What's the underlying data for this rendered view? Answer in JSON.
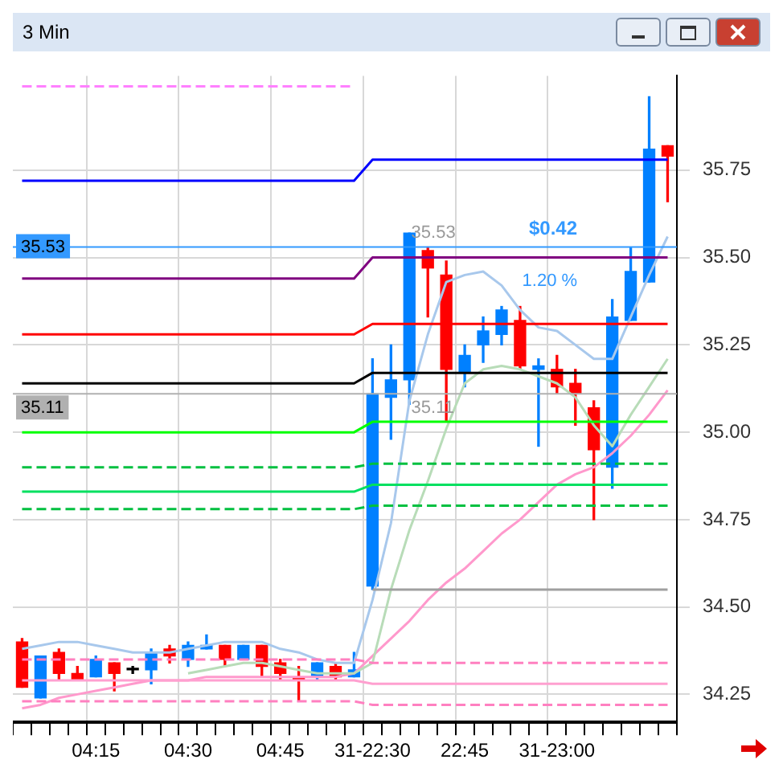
{
  "chart_data": {
    "type": "candlestick",
    "title": "3 Min",
    "categories": [
      null,
      null,
      null,
      null,
      "04:15",
      null,
      null,
      null,
      null,
      "04:30",
      null,
      null,
      null,
      null,
      "04:45",
      null,
      null,
      null,
      null,
      "31-22:30",
      null,
      null,
      null,
      null,
      "22:45",
      null,
      null,
      null,
      null,
      "31-23:00",
      null,
      null,
      null,
      null,
      null,
      null
    ],
    "series": [
      {
        "type": "line",
        "color": "#ff80ff",
        "line_style": "dashed",
        "values": [
          35.99,
          35.99,
          35.99,
          35.99,
          35.99,
          35.99,
          35.99,
          35.99,
          35.99,
          35.99,
          35.99,
          35.99,
          35.99,
          35.99,
          35.99,
          35.99,
          35.99,
          35.99,
          35.99,
          null,
          null,
          null,
          null,
          null,
          null,
          null,
          null,
          null,
          null,
          null,
          null,
          null,
          null,
          null,
          null,
          null
        ]
      },
      {
        "type": "line",
        "color": "#0000ff",
        "values": [
          35.72,
          35.72,
          35.72,
          35.72,
          35.72,
          35.72,
          35.72,
          35.72,
          35.72,
          35.72,
          35.72,
          35.72,
          35.72,
          35.72,
          35.72,
          35.72,
          35.72,
          35.72,
          35.72,
          35.78,
          35.78,
          35.78,
          35.78,
          35.78,
          35.78,
          35.78,
          35.78,
          35.78,
          35.78,
          35.78,
          35.78,
          35.78,
          35.78,
          35.78,
          35.78,
          35.78
        ]
      },
      {
        "type": "line",
        "color": "#800080",
        "values": [
          35.44,
          35.44,
          35.44,
          35.44,
          35.44,
          35.44,
          35.44,
          35.44,
          35.44,
          35.44,
          35.44,
          35.44,
          35.44,
          35.44,
          35.44,
          35.44,
          35.44,
          35.44,
          35.44,
          35.5,
          35.5,
          35.5,
          35.5,
          35.5,
          35.5,
          35.5,
          35.5,
          35.5,
          35.5,
          35.5,
          35.5,
          35.5,
          35.5,
          35.5,
          35.5,
          35.5
        ]
      },
      {
        "type": "line",
        "color": "#ff0000",
        "values": [
          35.28,
          35.28,
          35.28,
          35.28,
          35.28,
          35.28,
          35.28,
          35.28,
          35.28,
          35.28,
          35.28,
          35.28,
          35.28,
          35.28,
          35.28,
          35.28,
          35.28,
          35.28,
          35.28,
          35.31,
          35.31,
          35.31,
          35.31,
          35.31,
          35.31,
          35.31,
          35.31,
          35.31,
          35.31,
          35.31,
          35.31,
          35.31,
          35.31,
          35.31,
          35.31,
          35.31
        ]
      },
      {
        "type": "line",
        "color": "#000000",
        "values": [
          35.14,
          35.14,
          35.14,
          35.14,
          35.14,
          35.14,
          35.14,
          35.14,
          35.14,
          35.14,
          35.14,
          35.14,
          35.14,
          35.14,
          35.14,
          35.14,
          35.14,
          35.14,
          35.14,
          35.17,
          35.17,
          35.17,
          35.17,
          35.17,
          35.17,
          35.17,
          35.17,
          35.17,
          35.17,
          35.17,
          35.17,
          35.17,
          35.17,
          35.17,
          35.17,
          35.17
        ]
      },
      {
        "type": "line",
        "color": "#00ff00",
        "values": [
          35.0,
          35.0,
          35.0,
          35.0,
          35.0,
          35.0,
          35.0,
          35.0,
          35.0,
          35.0,
          35.0,
          35.0,
          35.0,
          35.0,
          35.0,
          35.0,
          35.0,
          35.0,
          35.0,
          35.03,
          35.03,
          35.03,
          35.03,
          35.03,
          35.03,
          35.03,
          35.03,
          35.03,
          35.03,
          35.03,
          35.03,
          35.03,
          35.03,
          35.03,
          35.03,
          35.03
        ]
      },
      {
        "type": "line",
        "color": "#00c040",
        "line_style": "dashed",
        "values": [
          34.9,
          34.9,
          34.9,
          34.9,
          34.9,
          34.9,
          34.9,
          34.9,
          34.9,
          34.9,
          34.9,
          34.9,
          34.9,
          34.9,
          34.9,
          34.9,
          34.9,
          34.9,
          34.9,
          34.91,
          34.91,
          34.91,
          34.91,
          34.91,
          34.91,
          34.91,
          34.91,
          34.91,
          34.91,
          34.91,
          34.91,
          34.91,
          34.91,
          34.91,
          34.91,
          34.91
        ]
      },
      {
        "type": "line",
        "color": "#00e060",
        "values": [
          34.83,
          34.83,
          34.83,
          34.83,
          34.83,
          34.83,
          34.83,
          34.83,
          34.83,
          34.83,
          34.83,
          34.83,
          34.83,
          34.83,
          34.83,
          34.83,
          34.83,
          34.83,
          34.83,
          34.85,
          34.85,
          34.85,
          34.85,
          34.85,
          34.85,
          34.85,
          34.85,
          34.85,
          34.85,
          34.85,
          34.85,
          34.85,
          34.85,
          34.85,
          34.85,
          34.85
        ]
      },
      {
        "type": "line",
        "color": "#00c040",
        "line_style": "dashed",
        "values": [
          34.78,
          34.78,
          34.78,
          34.78,
          34.78,
          34.78,
          34.78,
          34.78,
          34.78,
          34.78,
          34.78,
          34.78,
          34.78,
          34.78,
          34.78,
          34.78,
          34.78,
          34.78,
          34.78,
          34.79,
          34.79,
          34.79,
          34.79,
          34.79,
          34.79,
          34.79,
          34.79,
          34.79,
          34.79,
          34.79,
          34.79,
          34.79,
          34.79,
          34.79,
          34.79,
          34.79
        ]
      },
      {
        "type": "line",
        "color": "#a0a0a0",
        "values": [
          null,
          null,
          null,
          null,
          null,
          null,
          null,
          null,
          null,
          null,
          null,
          null,
          null,
          null,
          null,
          null,
          null,
          null,
          null,
          34.55,
          34.55,
          34.55,
          34.55,
          34.55,
          34.55,
          34.55,
          34.55,
          34.55,
          34.55,
          34.55,
          34.55,
          34.55,
          34.55,
          34.55,
          34.55,
          34.55
        ]
      },
      {
        "type": "line",
        "color": "#ff80c0",
        "line_style": "dashed",
        "values": [
          34.35,
          34.35,
          34.35,
          34.35,
          34.35,
          34.35,
          34.35,
          34.35,
          34.35,
          34.35,
          34.35,
          34.35,
          34.35,
          34.35,
          34.35,
          34.35,
          34.35,
          34.35,
          34.35,
          34.34,
          34.34,
          34.34,
          34.34,
          34.34,
          34.34,
          34.34,
          34.34,
          34.34,
          34.34,
          34.34,
          34.34,
          34.34,
          34.34,
          34.34,
          34.34,
          34.34
        ]
      },
      {
        "type": "line",
        "color": "#ffa0d0",
        "values": [
          34.29,
          34.29,
          34.29,
          34.29,
          34.29,
          34.29,
          34.29,
          34.29,
          34.29,
          34.29,
          34.29,
          34.29,
          34.29,
          34.29,
          34.29,
          34.29,
          34.29,
          34.29,
          34.29,
          34.28,
          34.28,
          34.28,
          34.28,
          34.28,
          34.28,
          34.28,
          34.28,
          34.28,
          34.28,
          34.28,
          34.28,
          34.28,
          34.28,
          34.28,
          34.28,
          34.28
        ]
      },
      {
        "type": "line",
        "color": "#ff80c0",
        "line_style": "dashed",
        "values": [
          34.23,
          34.23,
          34.23,
          34.23,
          34.23,
          34.23,
          34.23,
          34.23,
          34.23,
          34.23,
          34.23,
          34.23,
          34.23,
          34.23,
          34.23,
          34.23,
          34.23,
          34.23,
          34.23,
          34.22,
          34.22,
          34.22,
          34.22,
          34.22,
          34.22,
          34.22,
          34.22,
          34.22,
          34.22,
          34.22,
          34.22,
          34.22,
          34.22,
          34.22,
          34.22,
          34.22
        ]
      },
      {
        "type": "line",
        "color": "#a8c8ec",
        "values": [
          34.38,
          34.39,
          34.4,
          34.4,
          34.39,
          34.38,
          34.37,
          34.37,
          34.37,
          34.38,
          34.39,
          34.4,
          34.4,
          34.4,
          34.38,
          34.37,
          34.35,
          34.34,
          34.34,
          34.52,
          34.74,
          35.09,
          35.28,
          35.43,
          35.45,
          35.46,
          35.42,
          35.35,
          35.3,
          35.29,
          35.25,
          35.21,
          35.21,
          35.33,
          35.45,
          35.56
        ]
      },
      {
        "type": "line",
        "color": "#b8dcb8",
        "values": [
          null,
          null,
          null,
          null,
          null,
          null,
          null,
          null,
          null,
          34.31,
          34.32,
          34.33,
          34.34,
          34.34,
          34.33,
          34.32,
          34.31,
          34.31,
          34.31,
          34.34,
          34.55,
          34.72,
          34.86,
          35.01,
          35.14,
          35.18,
          35.19,
          35.18,
          35.16,
          35.14,
          35.1,
          35.02,
          34.96,
          35.05,
          35.13,
          35.21
        ]
      },
      {
        "type": "line",
        "color": "#ff99cc",
        "values": [
          34.21,
          34.22,
          34.24,
          34.25,
          34.26,
          34.27,
          34.28,
          34.29,
          34.29,
          34.29,
          34.3,
          34.3,
          34.3,
          34.3,
          34.3,
          34.3,
          34.3,
          34.3,
          34.31,
          34.36,
          34.41,
          34.46,
          34.52,
          34.57,
          34.61,
          34.66,
          34.71,
          34.75,
          34.8,
          34.85,
          34.88,
          34.9,
          34.94,
          34.99,
          35.05,
          35.12
        ]
      },
      {
        "colors": [
          "#ff0000",
          "#0080ff",
          "#ff0000",
          "#ff0000",
          "#0080ff",
          "#ff0000",
          "#000000",
          "#0080ff",
          "#ff0000",
          "#0080ff",
          "#0080ff",
          "#ff0000",
          "#0080ff",
          "#ff0000",
          "#ff0000",
          "#ff0000",
          "#0080ff",
          "#ff0000",
          "#0080ff",
          "#0080ff",
          "#0080ff",
          "#0080ff",
          "#ff0000",
          "#ff0000",
          "#0080ff",
          "#0080ff",
          "#0080ff",
          "#ff0000",
          "#0080ff",
          "#ff0000",
          "#ff0000",
          "#ff0000",
          "#0080ff",
          "#0080ff",
          "#0080ff",
          "#ff0000"
        ],
        "ohlc": [
          [
            34.4,
            34.41,
            34.27,
            34.27
          ],
          [
            34.24,
            34.36,
            34.24,
            34.36
          ],
          [
            34.37,
            34.38,
            34.29,
            34.31
          ],
          [
            34.31,
            34.33,
            34.29,
            34.29
          ],
          [
            34.3,
            34.36,
            34.3,
            34.35
          ],
          [
            34.34,
            34.34,
            34.26,
            34.31
          ],
          [
            34.32,
            34.33,
            34.31,
            34.32
          ],
          [
            34.32,
            34.38,
            34.28,
            34.37
          ],
          [
            34.38,
            34.39,
            34.34,
            34.36
          ],
          [
            34.35,
            34.4,
            34.33,
            34.39
          ],
          [
            34.38,
            34.42,
            34.38,
            34.39
          ],
          [
            34.39,
            34.39,
            34.33,
            34.35
          ],
          [
            34.35,
            34.39,
            34.35,
            34.39
          ],
          [
            34.39,
            34.39,
            34.3,
            34.33
          ],
          [
            34.34,
            34.35,
            34.29,
            34.31
          ],
          [
            34.3,
            34.33,
            34.23,
            34.29
          ],
          [
            34.3,
            34.34,
            34.29,
            34.34
          ],
          [
            34.33,
            34.34,
            34.29,
            34.3
          ],
          [
            34.3,
            34.37,
            34.3,
            34.32
          ],
          [
            34.56,
            35.21,
            34.55,
            35.11
          ],
          [
            35.1,
            35.25,
            34.98,
            35.15
          ],
          [
            35.15,
            35.57,
            35.08,
            35.57
          ],
          [
            35.52,
            35.53,
            35.33,
            35.47
          ],
          [
            35.45,
            35.49,
            35.03,
            35.18
          ],
          [
            35.17,
            35.25,
            35.13,
            35.22
          ],
          [
            35.25,
            35.33,
            35.2,
            35.29
          ],
          [
            35.28,
            35.36,
            35.25,
            35.35
          ],
          [
            35.32,
            35.36,
            35.18,
            35.19
          ],
          [
            35.18,
            35.21,
            34.96,
            35.19
          ],
          [
            35.18,
            35.22,
            35.11,
            35.13
          ],
          [
            35.14,
            35.18,
            35.02,
            35.11
          ],
          [
            35.07,
            35.09,
            34.75,
            34.95
          ],
          [
            34.9,
            35.38,
            34.84,
            35.33
          ],
          [
            35.32,
            35.53,
            35.32,
            35.46
          ],
          [
            35.43,
            35.96,
            35.43,
            35.81
          ],
          [
            35.82,
            35.82,
            35.66,
            35.79
          ]
        ]
      }
    ],
    "ylim": [
      34.17,
      36.02
    ],
    "yticks": [
      34.25,
      {
        "value": 34.5,
        "label": "34.50"
      },
      34.75,
      {
        "value": 35.0,
        "label": "35.00"
      },
      35.25,
      {
        "value": 35.5,
        "label": "35.50"
      },
      35.75
    ],
    "ref_lines": [
      {
        "axis": "y",
        "value": 35.53,
        "label": "35.53",
        "color": "#3399ff"
      },
      {
        "axis": "y",
        "value": 35.11,
        "label": "35.11",
        "color": "#b0b0b0"
      }
    ],
    "annotations": [
      {
        "text": "35.53",
        "y": 35.53
      },
      {
        "text": "35.11",
        "y": 35.11
      },
      "$0.42",
      "1.20 %"
    ],
    "grid": true,
    "legend": false,
    "marker": "none"
  }
}
